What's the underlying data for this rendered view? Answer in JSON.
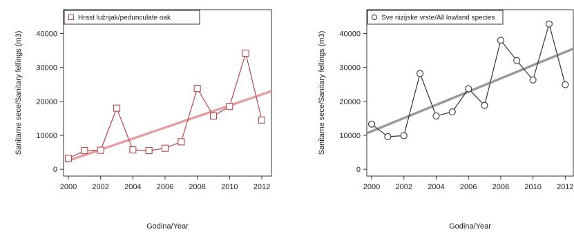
{
  "chart_data": [
    {
      "type": "line",
      "x": [
        2000,
        2001,
        2002,
        2003,
        2004,
        2005,
        2006,
        2007,
        2008,
        2009,
        2010,
        2011,
        2012
      ],
      "series": [
        {
          "name": "Hrast lužnjak/pedunculate oak",
          "values": [
            3200,
            5500,
            5600,
            18000,
            5700,
            5500,
            6200,
            8100,
            23800,
            15700,
            18500,
            34200,
            14500
          ],
          "color": "#b5474a",
          "marker": "square"
        }
      ],
      "trendline": {
        "x": [
          1999.8,
          2012.6
        ],
        "y": [
          2200,
          23000
        ],
        "color": "#e4a0a5"
      },
      "xlabel": "Godina/Year",
      "ylabel": "Sanitarne sece/Sanitary fellings (m3)",
      "xticks": [
        2000,
        2002,
        2004,
        2006,
        2008,
        2010,
        2012
      ],
      "yticks": [
        0,
        10000,
        20000,
        30000,
        40000
      ],
      "xlim": [
        1999.7,
        2012.6
      ],
      "ylim": [
        -2000,
        47000
      ],
      "legend": "top-left",
      "grid": false
    },
    {
      "type": "line",
      "x": [
        2000,
        2001,
        2002,
        2003,
        2004,
        2005,
        2006,
        2007,
        2008,
        2009,
        2010,
        2011,
        2012
      ],
      "series": [
        {
          "name": "Sve nizijske vrste/All lowland species",
          "values": [
            13300,
            9600,
            9900,
            28200,
            15700,
            16900,
            23700,
            18800,
            38000,
            32000,
            26300,
            42800,
            24900
          ],
          "color": "#333333",
          "marker": "circle"
        }
      ],
      "trendline": {
        "x": [
          1999.7,
          2012.5
        ],
        "y": [
          10600,
          35500
        ],
        "color": "#9a9a9a"
      },
      "xlabel": "Godina/Year",
      "ylabel": "Sanitarne sece/Sanitary fellings (m3)",
      "xticks": [
        2000,
        2002,
        2004,
        2006,
        2008,
        2010,
        2012
      ],
      "yticks": [
        0,
        10000,
        20000,
        30000,
        40000
      ],
      "xlim": [
        1999.7,
        2012.5
      ],
      "ylim": [
        -2000,
        47000
      ],
      "legend": "top-left",
      "grid": false
    }
  ]
}
